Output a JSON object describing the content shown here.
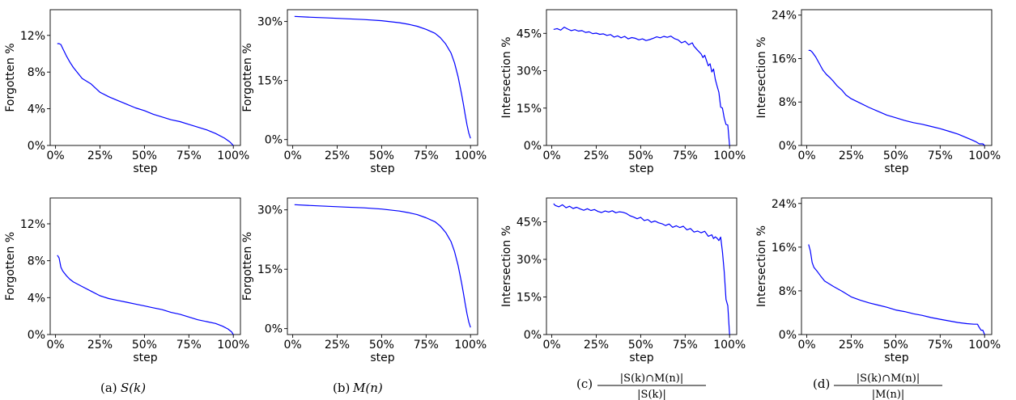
{
  "chart_data": [
    {
      "type": "line",
      "row": 0,
      "col": 0,
      "xlabel": "step",
      "ylabel": "Forgotten %",
      "xlim": [
        -3,
        104
      ],
      "ylim": [
        0,
        14.8
      ],
      "xticks": [
        0,
        25,
        50,
        75,
        100
      ],
      "xtick_labels": [
        "0%",
        "25%",
        "50%",
        "75%",
        "100%"
      ],
      "yticks": [
        0,
        4,
        8,
        12
      ],
      "ytick_labels": [
        "0%",
        "4%",
        "8%",
        "12%"
      ],
      "series": [
        {
          "color": "#0000ff",
          "x": [
            1,
            2,
            3,
            4,
            6,
            8,
            10,
            15,
            20,
            25,
            30,
            35,
            40,
            45,
            50,
            55,
            60,
            65,
            70,
            75,
            80,
            85,
            90,
            95,
            98,
            100
          ],
          "y": [
            11.1,
            11.1,
            11.0,
            10.6,
            9.8,
            9.1,
            8.5,
            7.3,
            6.7,
            5.8,
            5.3,
            4.9,
            4.5,
            4.1,
            3.8,
            3.4,
            3.1,
            2.8,
            2.6,
            2.3,
            2.0,
            1.7,
            1.3,
            0.8,
            0.4,
            0.0
          ]
        }
      ]
    },
    {
      "type": "line",
      "row": 0,
      "col": 1,
      "xlabel": "step",
      "ylabel": "Forgotten %",
      "xlim": [
        -3,
        104
      ],
      "ylim": [
        -1.5,
        33
      ],
      "xticks": [
        0,
        25,
        50,
        75,
        100
      ],
      "xtick_labels": [
        "0%",
        "25%",
        "50%",
        "75%",
        "100%"
      ],
      "yticks": [
        0,
        15,
        30
      ],
      "ytick_labels": [
        "0%",
        "15%",
        "30%"
      ],
      "series": [
        {
          "color": "#0000ff",
          "x": [
            1,
            10,
            20,
            30,
            40,
            50,
            60,
            65,
            70,
            75,
            80,
            83,
            86,
            89,
            91,
            93,
            95,
            96,
            97,
            98,
            99,
            100
          ],
          "y": [
            31.3,
            31.1,
            30.9,
            30.7,
            30.5,
            30.2,
            29.7,
            29.3,
            28.8,
            28.0,
            27.0,
            25.9,
            24.3,
            22.0,
            19.5,
            16.0,
            11.5,
            9.0,
            6.3,
            3.8,
            1.7,
            0.3
          ]
        }
      ]
    },
    {
      "type": "line",
      "row": 0,
      "col": 2,
      "xlabel": "step",
      "ylabel": "Intersection %",
      "xlim": [
        -3,
        104
      ],
      "ylim": [
        0,
        54.5
      ],
      "xticks": [
        0,
        25,
        50,
        75,
        100
      ],
      "xtick_labels": [
        "0%",
        "25%",
        "50%",
        "75%",
        "100%"
      ],
      "yticks": [
        0,
        15,
        30,
        45
      ],
      "ytick_labels": [
        "0%",
        "15%",
        "30%",
        "45%"
      ],
      "series": [
        {
          "color": "#0000ff",
          "x": [
            1,
            3,
            5,
            7,
            9,
            11,
            13,
            15,
            17,
            19,
            21,
            23,
            25,
            27,
            29,
            31,
            33,
            35,
            37,
            39,
            41,
            43,
            45,
            47,
            49,
            51,
            53,
            55,
            57,
            59,
            61,
            63,
            65,
            67,
            69,
            71,
            73,
            75,
            77,
            79,
            80,
            82,
            84,
            85,
            86,
            87,
            88,
            89,
            90,
            91,
            92,
            93,
            94,
            95,
            96,
            97,
            98,
            99,
            100
          ],
          "y": [
            46.6,
            46.9,
            46.3,
            47.5,
            46.7,
            46.1,
            46.5,
            45.9,
            46.1,
            45.4,
            45.6,
            44.9,
            45.1,
            44.6,
            44.8,
            44.2,
            44.5,
            43.5,
            44.0,
            43.2,
            43.8,
            42.8,
            43.3,
            43.0,
            42.4,
            42.8,
            42.1,
            42.5,
            43.0,
            43.6,
            43.2,
            43.8,
            43.4,
            43.9,
            42.9,
            42.4,
            41.2,
            41.8,
            40.4,
            41.2,
            39.8,
            38.2,
            36.7,
            35.3,
            36.2,
            34.1,
            32.0,
            32.8,
            29.5,
            30.7,
            26.5,
            23.8,
            21.3,
            15.4,
            15.0,
            11.0,
            8.4,
            8.2,
            0.0
          ]
        }
      ]
    },
    {
      "type": "line",
      "row": 0,
      "col": 3,
      "xlabel": "step",
      "ylabel": "Intersection %",
      "xlim": [
        -3,
        104
      ],
      "ylim": [
        0,
        25
      ],
      "xticks": [
        0,
        25,
        50,
        75,
        100
      ],
      "xtick_labels": [
        "0%",
        "25%",
        "50%",
        "75%",
        "100%"
      ],
      "yticks": [
        0,
        8,
        16,
        24
      ],
      "ytick_labels": [
        "0%",
        "8%",
        "16%",
        "24%"
      ],
      "series": [
        {
          "color": "#0000ff",
          "x": [
            1,
            2,
            3,
            5,
            7,
            9,
            11,
            13,
            15,
            17,
            20,
            22,
            25,
            30,
            35,
            40,
            45,
            50,
            55,
            60,
            65,
            70,
            75,
            80,
            85,
            90,
            93,
            95,
            97,
            98,
            99,
            100
          ],
          "y": [
            17.5,
            17.5,
            17.2,
            16.3,
            15.1,
            13.9,
            13.1,
            12.5,
            11.8,
            11.0,
            10.1,
            9.3,
            8.6,
            7.8,
            7.0,
            6.3,
            5.6,
            5.1,
            4.6,
            4.2,
            3.9,
            3.5,
            3.1,
            2.6,
            2.1,
            1.4,
            1.0,
            0.7,
            0.3,
            0.3,
            0.3,
            0.0
          ]
        }
      ]
    },
    {
      "type": "line",
      "row": 1,
      "col": 0,
      "xlabel": "step",
      "ylabel": "Forgotten %",
      "xlim": [
        -3,
        104
      ],
      "ylim": [
        0,
        14.8
      ],
      "xticks": [
        0,
        25,
        50,
        75,
        100
      ],
      "xtick_labels": [
        "0%",
        "25%",
        "50%",
        "75%",
        "100%"
      ],
      "yticks": [
        0,
        4,
        8,
        12
      ],
      "ytick_labels": [
        "0%",
        "4%",
        "8%",
        "12%"
      ],
      "series": [
        {
          "color": "#0000ff",
          "x": [
            1,
            2,
            3,
            4,
            6,
            8,
            10,
            15,
            20,
            25,
            30,
            35,
            40,
            45,
            50,
            55,
            60,
            65,
            70,
            75,
            80,
            85,
            90,
            94,
            97,
            99,
            100
          ],
          "y": [
            8.6,
            8.3,
            7.3,
            6.9,
            6.4,
            6.0,
            5.7,
            5.2,
            4.7,
            4.2,
            3.9,
            3.7,
            3.5,
            3.3,
            3.1,
            2.9,
            2.7,
            2.4,
            2.2,
            1.9,
            1.6,
            1.4,
            1.2,
            0.9,
            0.6,
            0.3,
            0.0
          ]
        }
      ]
    },
    {
      "type": "line",
      "row": 1,
      "col": 1,
      "xlabel": "step",
      "ylabel": "Forgotten %",
      "xlim": [
        -3,
        104
      ],
      "ylim": [
        -1.5,
        33
      ],
      "xticks": [
        0,
        25,
        50,
        75,
        100
      ],
      "xtick_labels": [
        "0%",
        "25%",
        "50%",
        "75%",
        "100%"
      ],
      "yticks": [
        0,
        15,
        30
      ],
      "ytick_labels": [
        "0%",
        "15%",
        "30%"
      ],
      "series": [
        {
          "color": "#0000ff",
          "x": [
            1,
            10,
            20,
            30,
            40,
            50,
            60,
            65,
            70,
            75,
            80,
            83,
            86,
            89,
            91,
            93,
            95,
            96,
            97,
            98,
            99,
            100
          ],
          "y": [
            31.3,
            31.1,
            30.9,
            30.7,
            30.5,
            30.2,
            29.7,
            29.3,
            28.8,
            28.0,
            27.0,
            25.9,
            24.3,
            22.0,
            19.5,
            16.0,
            11.5,
            9.0,
            6.3,
            3.8,
            1.7,
            0.3
          ]
        }
      ]
    },
    {
      "type": "line",
      "row": 1,
      "col": 2,
      "xlabel": "step",
      "ylabel": "Intersection %",
      "xlim": [
        -3,
        104
      ],
      "ylim": [
        0,
        54.5
      ],
      "xticks": [
        0,
        25,
        50,
        75,
        100
      ],
      "xtick_labels": [
        "0%",
        "25%",
        "50%",
        "75%",
        "100%"
      ],
      "yticks": [
        0,
        15,
        30,
        45
      ],
      "ytick_labels": [
        "0%",
        "15%",
        "30%",
        "45%"
      ],
      "series": [
        {
          "color": "#0000ff",
          "x": [
            1,
            2,
            4,
            6,
            8,
            10,
            12,
            14,
            16,
            18,
            20,
            22,
            24,
            26,
            28,
            30,
            32,
            34,
            36,
            38,
            40,
            42,
            44,
            46,
            48,
            50,
            52,
            54,
            56,
            58,
            60,
            62,
            64,
            66,
            68,
            70,
            72,
            74,
            76,
            78,
            80,
            82,
            84,
            86,
            88,
            90,
            91,
            92,
            93,
            94,
            95,
            96,
            97,
            98,
            99,
            100
          ],
          "y": [
            52.2,
            51.5,
            51.0,
            51.8,
            50.6,
            51.2,
            50.3,
            50.8,
            50.1,
            49.6,
            50.2,
            49.5,
            49.9,
            49.1,
            48.7,
            49.3,
            48.9,
            49.4,
            48.6,
            49.0,
            48.8,
            48.3,
            47.4,
            46.9,
            46.2,
            46.8,
            45.5,
            45.9,
            44.8,
            45.3,
            44.6,
            44.2,
            43.5,
            44.1,
            42.8,
            43.4,
            42.7,
            43.2,
            41.8,
            42.3,
            40.9,
            41.3,
            40.6,
            41.2,
            39.2,
            39.8,
            38.3,
            39.0,
            38.4,
            37.5,
            38.9,
            33.0,
            25.0,
            14.0,
            11.5,
            0.0
          ]
        }
      ]
    },
    {
      "type": "line",
      "row": 1,
      "col": 3,
      "xlabel": "step",
      "ylabel": "Intersection %",
      "xlim": [
        -3,
        104
      ],
      "ylim": [
        0,
        25
      ],
      "xticks": [
        0,
        25,
        50,
        75,
        100
      ],
      "xtick_labels": [
        "0%",
        "25%",
        "50%",
        "75%",
        "100%"
      ],
      "yticks": [
        0,
        8,
        16,
        24
      ],
      "ytick_labels": [
        "0%",
        "8%",
        "16%",
        "24%"
      ],
      "series": [
        {
          "color": "#0000ff",
          "x": [
            1,
            2,
            3,
            4,
            6,
            8,
            10,
            15,
            20,
            25,
            30,
            35,
            40,
            45,
            50,
            55,
            60,
            65,
            70,
            75,
            80,
            85,
            90,
            94,
            96,
            97,
            98,
            99,
            100
          ],
          "y": [
            16.5,
            15.3,
            13.2,
            12.3,
            11.5,
            10.6,
            9.8,
            8.8,
            7.9,
            6.9,
            6.3,
            5.8,
            5.4,
            5.0,
            4.5,
            4.2,
            3.8,
            3.5,
            3.1,
            2.8,
            2.5,
            2.2,
            2.0,
            1.9,
            1.9,
            1.3,
            0.8,
            0.8,
            0.0
          ]
        }
      ]
    }
  ],
  "captions": {
    "a": {
      "label": "(a)",
      "symbol": "S(k)"
    },
    "b": {
      "label": "(b)",
      "symbol": "M(n)"
    },
    "c": {
      "label": "(c)",
      "num": "|S(k)∩M(n)|",
      "den": "|S(k)|"
    },
    "d": {
      "label": "(d)",
      "num": "|S(k)∩M(n)|",
      "den": "|M(n)|"
    }
  }
}
